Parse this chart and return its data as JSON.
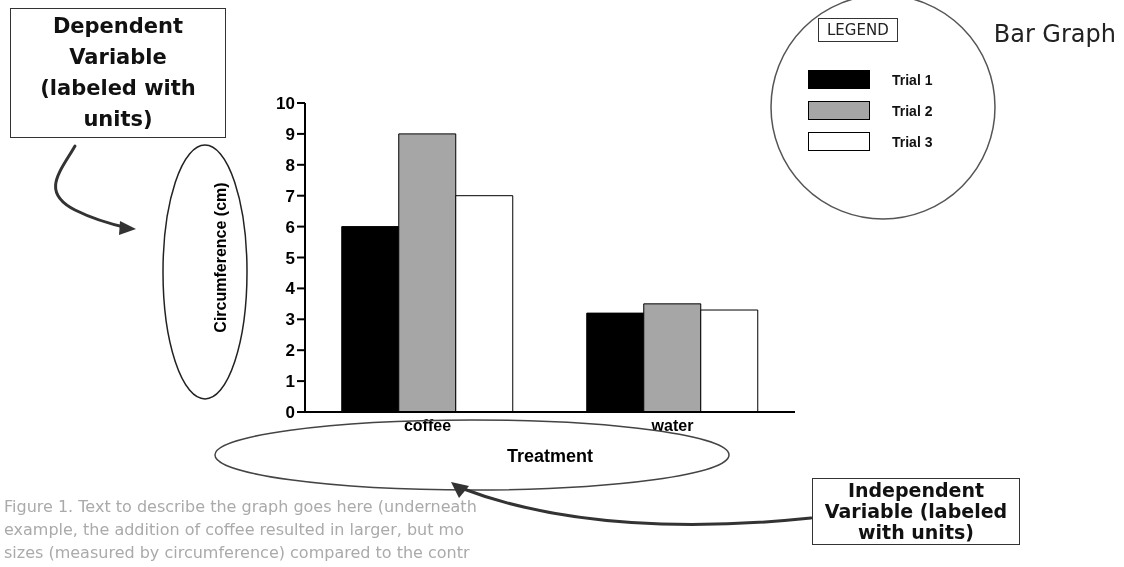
{
  "chart_data": {
    "type": "bar",
    "title": "Bar Graph",
    "xlabel": "Treatment",
    "ylabel": "Circumference (cm)",
    "legend_title": "LEGEND",
    "legend": "top right",
    "categories": [
      "coffee",
      "water"
    ],
    "series": [
      {
        "name": "Trial 1",
        "color": "#000000",
        "values": [
          6,
          3.2
        ]
      },
      {
        "name": "Trial 2",
        "color": "#a6a6a6",
        "values": [
          9,
          3.5
        ]
      },
      {
        "name": "Trial 3",
        "color": "#ffffff",
        "values": [
          7,
          3.3
        ]
      }
    ],
    "ylim": [
      0,
      10
    ],
    "yticks": [
      0,
      1,
      2,
      3,
      4,
      5,
      6,
      7,
      8,
      9,
      10
    ],
    "annotations": [
      "Dependent Variable (labeled with units)",
      "Independent Variable (labeled with units)",
      "Figure 1.  Text to describe the graph goes here (underneath",
      "example, the addition of coffee resulted in larger, but mo",
      "sizes (measured by circumference) compared to the contr"
    ]
  }
}
